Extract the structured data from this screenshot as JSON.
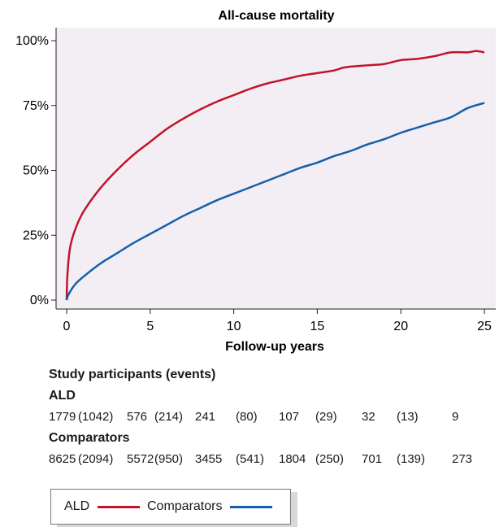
{
  "chart_data": {
    "type": "line",
    "title": "All-cause mortality",
    "xlabel": "Follow-up years",
    "ylabel": "",
    "xlim": [
      0,
      25
    ],
    "ylim": [
      0,
      100
    ],
    "xticks": [
      "0",
      "5",
      "10",
      "15",
      "20",
      "25"
    ],
    "yticks": [
      "0%",
      "25%",
      "50%",
      "75%",
      "100%"
    ],
    "background_color": "#f3eef4",
    "grid": false,
    "legend_position": "bottom-left",
    "series": [
      {
        "name": "ALD",
        "color": "#c0142a",
        "x": [
          0,
          0.05,
          0.2,
          0.5,
          1,
          2,
          3,
          4,
          5,
          6,
          7,
          8,
          9,
          10,
          11,
          12,
          13,
          14,
          15,
          16,
          16.5,
          17,
          18,
          19,
          20,
          21,
          22,
          23,
          24,
          24.5,
          25
        ],
        "y": [
          0,
          10,
          20,
          27,
          34,
          43,
          50,
          56,
          61,
          66,
          70,
          73.5,
          76.5,
          79,
          81.5,
          83.5,
          85,
          86.5,
          87.5,
          88.5,
          89.5,
          90,
          90.5,
          91,
          92.5,
          93,
          94,
          95.5,
          95.5,
          96,
          95.5
        ]
      },
      {
        "name": "Comparators",
        "color": "#1560a8",
        "x": [
          0,
          0.1,
          0.5,
          1,
          2,
          3,
          4,
          5,
          6,
          7,
          8,
          9,
          10,
          11,
          12,
          13,
          14,
          15,
          16,
          17,
          18,
          19,
          20,
          21,
          22,
          23,
          24,
          25
        ],
        "y": [
          0,
          2,
          6,
          9,
          14,
          18,
          22,
          25.5,
          29,
          32.5,
          35.5,
          38.5,
          41,
          43.5,
          46,
          48.5,
          51,
          53,
          55.5,
          57.5,
          60,
          62,
          64.5,
          66.5,
          68.5,
          70.5,
          74,
          76
        ]
      }
    ]
  },
  "risk_table": {
    "heading": "Study participants (events)",
    "groups": [
      {
        "name": "ALD",
        "cells": [
          "1779",
          "(1042)",
          "576",
          "(214)",
          "241",
          "(80)",
          "107",
          "(29)",
          "32",
          "(13)",
          "9"
        ]
      },
      {
        "name": "Comparators",
        "cells": [
          "8625",
          "(2094)",
          "5572",
          "(950)",
          "3455",
          "(541)",
          "1804",
          "(250)",
          "701",
          "(139)",
          "273"
        ]
      }
    ]
  },
  "legend": {
    "items": [
      {
        "label": "ALD",
        "color": "#c0142a"
      },
      {
        "label": "Comparators",
        "color": "#1560a8"
      }
    ]
  }
}
